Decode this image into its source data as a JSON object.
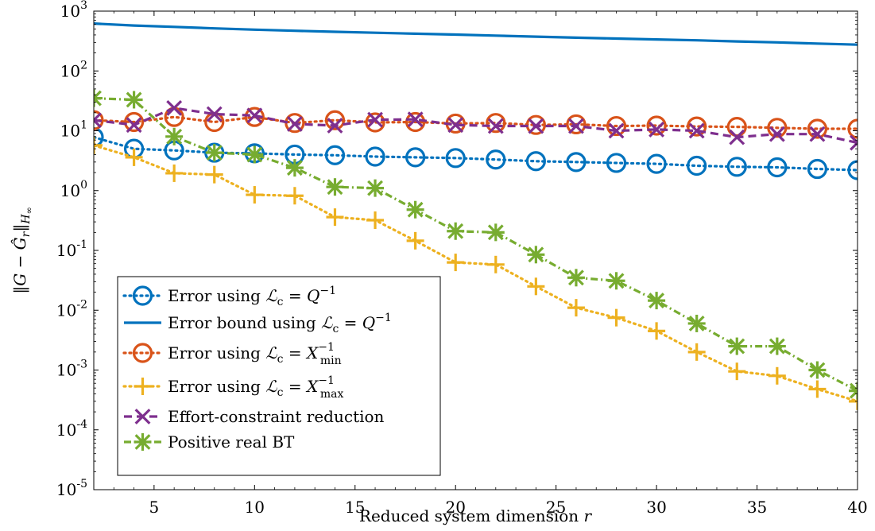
{
  "chart_data": {
    "type": "line",
    "xlabel": "Reduced system dimension r",
    "ylabel": "‖G − Ĝr‖H∞",
    "xlim": [
      2,
      40
    ],
    "ylim_exp": [
      -5,
      3
    ],
    "yscale": "log",
    "grid": false,
    "legend_position": "bottom-left",
    "x_ticks": [
      5,
      10,
      15,
      20,
      25,
      30,
      35,
      40
    ],
    "y_tick_labels": [
      "10-5",
      "10-4",
      "10-3",
      "10-2",
      "10-1",
      "100",
      "101",
      "102",
      "103"
    ],
    "series": [
      {
        "name": "Error using Lc = Q-1",
        "color": "#0072BD",
        "style": "dotted",
        "marker": "circle",
        "x": [
          2,
          4,
          6,
          8,
          10,
          12,
          14,
          16,
          18,
          20,
          22,
          24,
          26,
          28,
          30,
          32,
          34,
          36,
          38,
          40
        ],
        "y": [
          7.8,
          5.0,
          4.7,
          4.3,
          4.2,
          4.0,
          3.9,
          3.7,
          3.6,
          3.5,
          3.3,
          3.1,
          3.0,
          2.9,
          2.8,
          2.6,
          2.5,
          2.45,
          2.3,
          2.2
        ]
      },
      {
        "name": "Error bound using Lc = Q-1",
        "color": "#0072BD",
        "style": "solid",
        "marker": "none",
        "x": [
          2,
          4,
          6,
          8,
          10,
          12,
          14,
          16,
          18,
          20,
          22,
          24,
          26,
          28,
          30,
          32,
          34,
          36,
          38,
          40
        ],
        "y": [
          620,
          575,
          545,
          515,
          490,
          470,
          452,
          435,
          420,
          405,
          390,
          375,
          360,
          348,
          336,
          325,
          312,
          300,
          287,
          275
        ]
      },
      {
        "name": "Error using Lc = X-1min",
        "color": "#D95319",
        "style": "dotted",
        "marker": "circle",
        "x": [
          2,
          4,
          6,
          8,
          10,
          12,
          14,
          16,
          18,
          20,
          22,
          24,
          26,
          28,
          30,
          32,
          34,
          36,
          38,
          40
        ],
        "y": [
          15,
          14,
          17,
          14,
          17,
          13.5,
          15,
          13.8,
          14,
          13.2,
          13.5,
          12.5,
          12.8,
          12,
          12.2,
          11.8,
          11.6,
          11.2,
          10.8,
          10.8
        ]
      },
      {
        "name": "Error using Lc = X-1max",
        "color": "#EDB120",
        "style": "dotted",
        "marker": "plus",
        "x": [
          2,
          4,
          6,
          8,
          10,
          12,
          14,
          16,
          18,
          20,
          22,
          24,
          26,
          28,
          30,
          32,
          34,
          36,
          38,
          40
        ],
        "y": [
          5.7,
          3.6,
          1.95,
          1.85,
          0.85,
          0.82,
          0.36,
          0.32,
          0.145,
          0.063,
          0.058,
          0.025,
          0.011,
          0.0075,
          0.0045,
          0.002,
          0.00095,
          0.0008,
          0.00048,
          0.0003
        ]
      },
      {
        "name": "Effort-constraint reduction",
        "color": "#7E2F8E",
        "style": "dashed",
        "marker": "x",
        "x": [
          2,
          4,
          6,
          8,
          10,
          12,
          14,
          16,
          18,
          20,
          22,
          24,
          26,
          28,
          30,
          32,
          34,
          36,
          38,
          40
        ],
        "y": [
          15,
          12.5,
          24,
          19,
          18,
          13,
          12.2,
          15.3,
          15.5,
          12.5,
          12,
          12,
          12,
          10,
          10.5,
          10,
          7.8,
          8.8,
          8.8,
          6.3
        ]
      },
      {
        "name": "Positive real BT",
        "color": "#77AC30",
        "style": "dashdot",
        "marker": "star",
        "x": [
          2,
          4,
          6,
          8,
          10,
          12,
          14,
          16,
          18,
          20,
          22,
          24,
          26,
          28,
          30,
          32,
          34,
          36,
          38,
          40
        ],
        "y": [
          35,
          33,
          8,
          4.3,
          4,
          2.4,
          1.15,
          1.1,
          0.48,
          0.21,
          0.2,
          0.085,
          0.035,
          0.031,
          0.0145,
          0.006,
          0.0025,
          0.0025,
          0.001,
          0.00045
        ]
      }
    ]
  }
}
